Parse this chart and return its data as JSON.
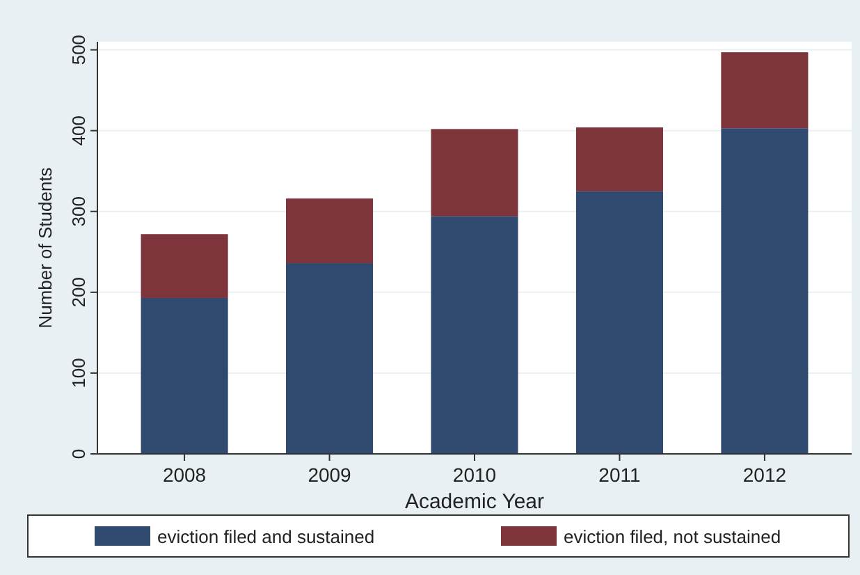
{
  "chart_data": {
    "type": "bar",
    "stacked": true,
    "xlabel": "Academic Year",
    "ylabel": "Number of Students",
    "categories": [
      "2008",
      "2009",
      "2010",
      "2011",
      "2012"
    ],
    "series": [
      {
        "name": "eviction filed and sustained",
        "color": "#2f4a6e",
        "values": [
          193,
          236,
          294,
          325,
          403
        ]
      },
      {
        "name": "eviction filed, not sustained",
        "color": "#7e343b",
        "values": [
          79,
          80,
          108,
          79,
          94
        ]
      }
    ],
    "ylim": [
      0,
      510
    ],
    "yticks": [
      0,
      100,
      200,
      300,
      400,
      500
    ],
    "grid": "y",
    "legend": "bottom"
  }
}
